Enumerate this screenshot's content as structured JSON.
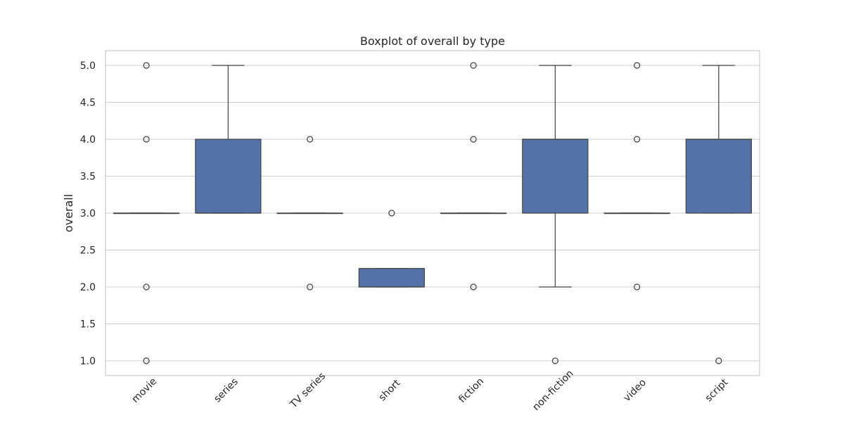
{
  "chart_data": {
    "type": "box",
    "title": "Boxplot of overall by type",
    "xlabel": "",
    "ylabel": "overall",
    "ylim": [
      0.8,
      5.2
    ],
    "yticks": [
      1.0,
      1.5,
      2.0,
      2.5,
      3.0,
      3.5,
      4.0,
      4.5,
      5.0
    ],
    "grid": "horizontal",
    "box_color": "#5573a8",
    "categories": [
      "movie",
      "series",
      "TV series",
      "short",
      "fiction",
      "non-fiction",
      "video",
      "script"
    ],
    "boxes": [
      {
        "category": "movie",
        "whisker_low": 3.0,
        "q1": 3.0,
        "median": 3.0,
        "q3": 3.0,
        "whisker_high": 3.0,
        "outliers": [
          1.0,
          2.0,
          4.0,
          5.0
        ]
      },
      {
        "category": "series",
        "whisker_low": 3.0,
        "q1": 3.0,
        "median": 3.0,
        "q3": 4.0,
        "whisker_high": 5.0,
        "outliers": []
      },
      {
        "category": "TV series",
        "whisker_low": 3.0,
        "q1": 3.0,
        "median": 3.0,
        "q3": 3.0,
        "whisker_high": 3.0,
        "outliers": [
          2.0,
          4.0
        ]
      },
      {
        "category": "short",
        "whisker_low": 2.0,
        "q1": 2.0,
        "median": 2.0,
        "q3": 2.25,
        "whisker_high": 2.25,
        "outliers": [
          3.0
        ]
      },
      {
        "category": "fiction",
        "whisker_low": 3.0,
        "q1": 3.0,
        "median": 3.0,
        "q3": 3.0,
        "whisker_high": 3.0,
        "outliers": [
          2.0,
          4.0,
          5.0
        ]
      },
      {
        "category": "non-fiction",
        "whisker_low": 2.0,
        "q1": 3.0,
        "median": 4.0,
        "q3": 4.0,
        "whisker_high": 5.0,
        "outliers": [
          1.0
        ]
      },
      {
        "category": "video",
        "whisker_low": 3.0,
        "q1": 3.0,
        "median": 3.0,
        "q3": 3.0,
        "whisker_high": 3.0,
        "outliers": [
          2.0,
          4.0,
          5.0
        ]
      },
      {
        "category": "script",
        "whisker_low": 3.0,
        "q1": 3.0,
        "median": 4.0,
        "q3": 4.0,
        "whisker_high": 5.0,
        "outliers": [
          1.0
        ]
      }
    ]
  }
}
